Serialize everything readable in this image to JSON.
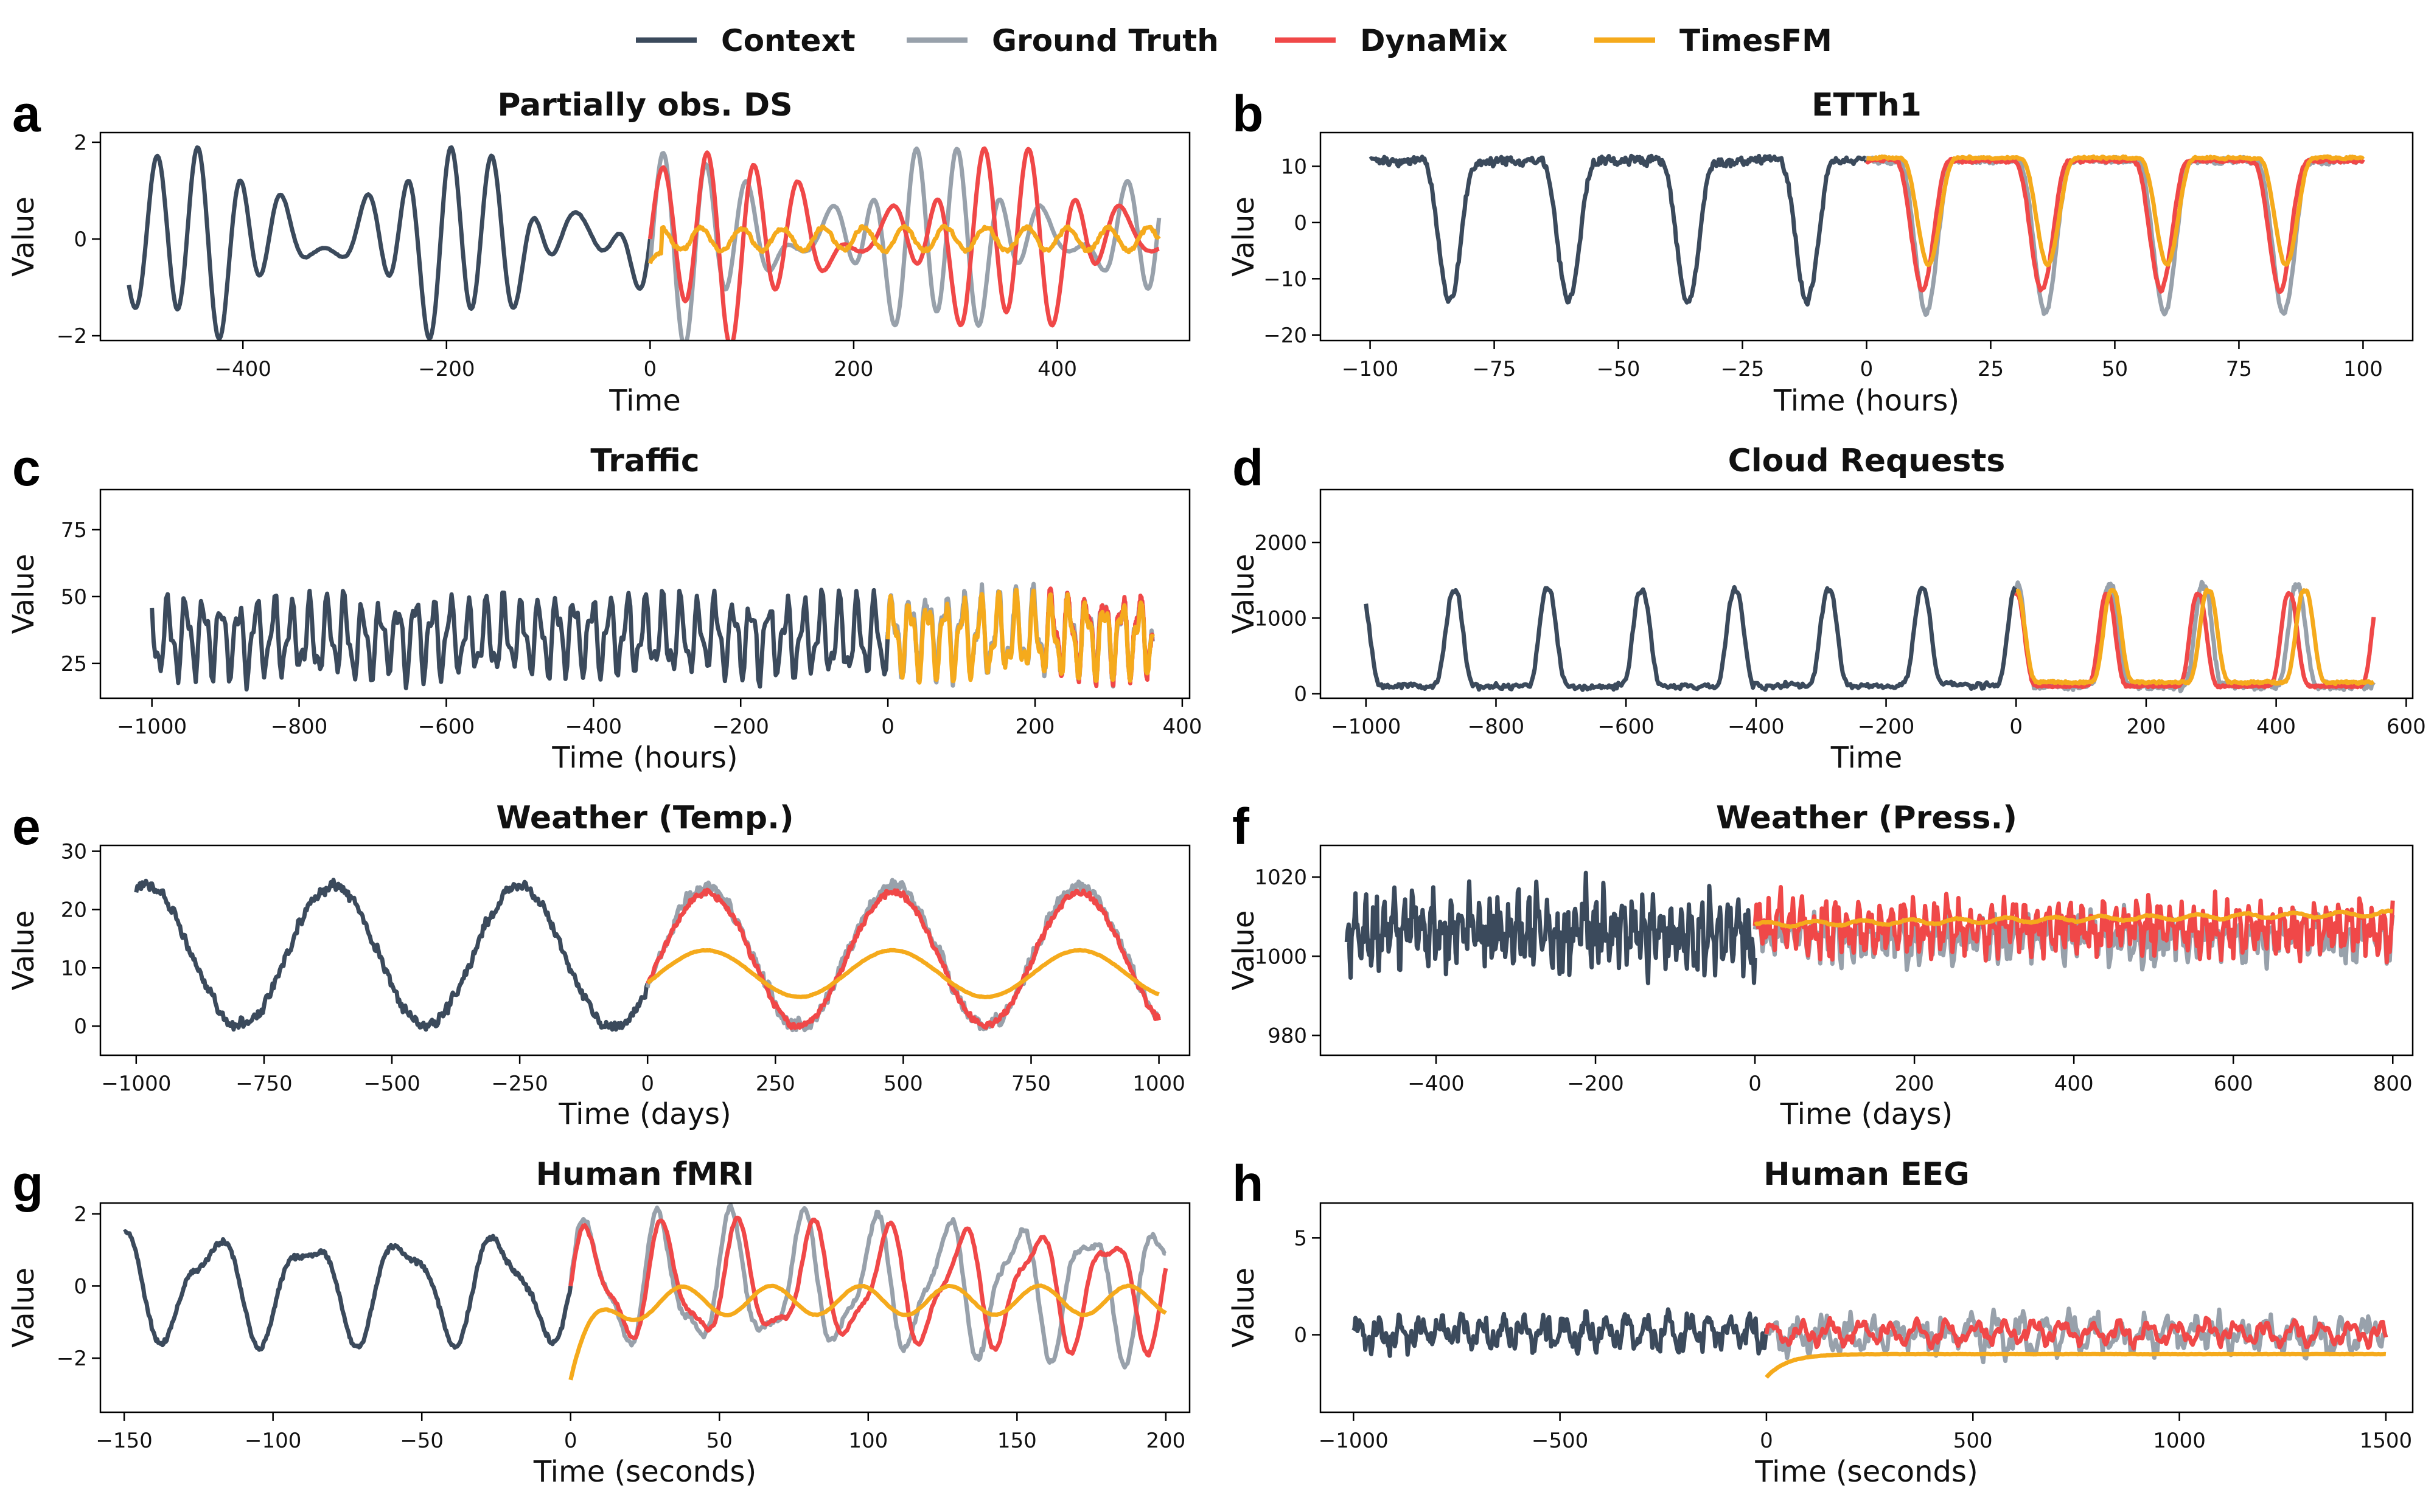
{
  "legend": [
    {
      "name": "Context",
      "color": "#3b4a5c"
    },
    {
      "name": "Ground Truth",
      "color": "#98a1ab"
    },
    {
      "name": "DynaMix",
      "color": "#f04848"
    },
    {
      "name": "TimesFM",
      "color": "#f5aa1c"
    }
  ],
  "chart_data": [
    {
      "letter": "a",
      "type": "line",
      "title": "Partially obs. DS",
      "xlabel": "Time",
      "ylabel": "Value",
      "xlim": [
        -540,
        530
      ],
      "ylim": [
        -2.1,
        2.2
      ],
      "xticks": [
        -400,
        -200,
        0,
        200,
        400
      ],
      "yticks": [
        -2,
        0,
        2
      ],
      "x_context": [
        -512,
        0
      ],
      "x_forecast": [
        0,
        500
      ],
      "series": [
        {
          "name": "Context",
          "style": "osc",
          "amp": 1.7,
          "base": 0.0,
          "period": 128,
          "extra": 1.2,
          "noise": 0.02
        },
        {
          "name": "Ground Truth",
          "style": "osc",
          "amp": 1.7,
          "base": 0.0,
          "period": 128,
          "extra": 1.2,
          "noise": 0.02,
          "phase": 0.3
        },
        {
          "name": "DynaMix",
          "style": "osc",
          "amp": 1.7,
          "base": 0.0,
          "period": 140,
          "extra": 1.2,
          "noise": 0.02,
          "phase": 0.0
        },
        {
          "name": "TimesFM",
          "style": "osc",
          "amp": 0.4,
          "base": 0.0,
          "period": 40,
          "extra": 0.3,
          "noise": 0.08,
          "decay": 1
        }
      ]
    },
    {
      "letter": "b",
      "type": "line",
      "title": "ETTh1",
      "xlabel": "Time (hours)",
      "ylabel": "Value",
      "xlim": [
        -110,
        110
      ],
      "ylim": [
        -21,
        16
      ],
      "xticks": [
        -100,
        -75,
        -50,
        -25,
        0,
        25,
        50,
        75,
        100
      ],
      "yticks": [
        -20,
        -10,
        0,
        10
      ],
      "x_context": [
        -100,
        0
      ],
      "x_forecast": [
        0,
        100
      ],
      "series": [
        {
          "name": "Context",
          "style": "dips",
          "amp": 25,
          "base": 11,
          "period": 24,
          "noise": 1.5
        },
        {
          "name": "Ground Truth",
          "style": "dips",
          "amp": 27,
          "base": 11,
          "period": 24,
          "noise": 1.0
        },
        {
          "name": "DynaMix",
          "style": "dips",
          "amp": 23,
          "base": 11,
          "period": 24,
          "noise": 0.6,
          "phase": 0.03
        },
        {
          "name": "TimesFM",
          "style": "dips",
          "amp": 19,
          "base": 11.5,
          "period": 24,
          "noise": 0.4,
          "phase": -0.02
        }
      ]
    },
    {
      "letter": "c",
      "type": "line",
      "title": "Traffic",
      "xlabel": "Time (hours)",
      "ylabel": "Value",
      "xlim": [
        -1070,
        410
      ],
      "ylim": [
        12,
        90
      ],
      "xticks": [
        -1000,
        -800,
        -600,
        -400,
        -200,
        0,
        200,
        400
      ],
      "yticks": [
        25,
        50,
        75
      ],
      "x_context": [
        -1000,
        0
      ],
      "x_forecast": [
        0,
        360
      ],
      "series": [
        {
          "name": "Context",
          "style": "spiky",
          "amp": 22,
          "base": 35,
          "period": 24,
          "noise": 5
        },
        {
          "name": "Ground Truth",
          "style": "spiky",
          "amp": 22,
          "base": 36,
          "period": 24,
          "noise": 5
        },
        {
          "name": "DynaMix",
          "style": "spiky",
          "amp": 22,
          "base": 36,
          "period": 24,
          "noise": 4,
          "start": 210
        },
        {
          "name": "TimesFM",
          "style": "spiky",
          "amp": 21,
          "base": 35,
          "period": 24,
          "noise": 3
        }
      ]
    },
    {
      "letter": "d",
      "type": "line",
      "title": "Cloud Requests",
      "xlabel": "Time",
      "ylabel": "Value",
      "xlim": [
        -1070,
        610
      ],
      "ylim": [
        -60,
        2700
      ],
      "xticks": [
        -1000,
        -800,
        -600,
        -400,
        -200,
        0,
        200,
        400,
        600
      ],
      "yticks": [
        0,
        1000,
        2000
      ],
      "x_context": [
        -1000,
        0
      ],
      "x_forecast": [
        0,
        550
      ],
      "series": [
        {
          "name": "Context",
          "style": "bumps",
          "amp": 2100,
          "base": 100,
          "period": 144,
          "noise": 80
        },
        {
          "name": "Ground Truth",
          "style": "bumps",
          "amp": 2200,
          "base": 100,
          "period": 144,
          "noise": 90
        },
        {
          "name": "DynaMix",
          "style": "bumps",
          "amp": 2000,
          "base": 100,
          "period": 140,
          "noise": 30
        },
        {
          "name": "TimesFM",
          "style": "bumps",
          "amp": 2000,
          "base": 150,
          "period": 148,
          "noise": 30
        }
      ]
    },
    {
      "letter": "e",
      "type": "line",
      "title": "Weather (Temp.)",
      "xlabel": "Time (days)",
      "ylabel": "Value",
      "xlim": [
        -1070,
        1060
      ],
      "ylim": [
        -5,
        31
      ],
      "xticks": [
        -1000,
        -750,
        -500,
        -250,
        0,
        250,
        500,
        750,
        1000
      ],
      "yticks": [
        0,
        10,
        20,
        30
      ],
      "x_context": [
        -1000,
        0
      ],
      "x_forecast": [
        0,
        1000
      ],
      "series": [
        {
          "name": "Context",
          "style": "seasonal",
          "amp": 12,
          "base": 12,
          "period": 365,
          "noise": 2.0
        },
        {
          "name": "Ground Truth",
          "style": "seasonal",
          "amp": 12,
          "base": 12,
          "period": 365,
          "noise": 2.2
        },
        {
          "name": "DynaMix",
          "style": "seasonal",
          "amp": 11.5,
          "base": 11.5,
          "period": 365,
          "noise": 1.2
        },
        {
          "name": "TimesFM",
          "style": "seasonal",
          "amp": 4,
          "base": 9,
          "period": 365,
          "noise": 0.1
        }
      ]
    },
    {
      "letter": "f",
      "type": "line",
      "title": "Weather (Press.)",
      "xlabel": "Time (days)",
      "ylabel": "Value",
      "xlim": [
        -545,
        825
      ],
      "ylim": [
        975,
        1028
      ],
      "xticks": [
        -400,
        -200,
        0,
        200,
        400,
        600,
        800
      ],
      "yticks": [
        980,
        1000,
        1020
      ],
      "x_context": [
        -512,
        0
      ],
      "x_forecast": [
        0,
        800
      ],
      "series": [
        {
          "name": "Context",
          "style": "noisy",
          "amp": 12,
          "base": 1006,
          "period": 12,
          "noise": 7
        },
        {
          "name": "Ground Truth",
          "style": "noisy",
          "amp": 9,
          "base": 1005,
          "period": 14,
          "noise": 5
        },
        {
          "name": "DynaMix",
          "style": "noisy",
          "amp": 10,
          "base": 1007,
          "period": 14,
          "noise": 4
        },
        {
          "name": "TimesFM",
          "style": "trend",
          "amp": 0.6,
          "base": 1008,
          "period": 60,
          "noise": 0.3,
          "slope": 0.0035
        }
      ]
    },
    {
      "letter": "g",
      "type": "line",
      "title": "Human fMRI",
      "xlabel": "Time (seconds)",
      "ylabel": "Value",
      "xlim": [
        -158,
        208
      ],
      "ylim": [
        -3.5,
        2.3
      ],
      "xticks": [
        -150,
        -100,
        -50,
        0,
        50,
        100,
        150,
        200
      ],
      "yticks": [
        -2,
        0,
        2
      ],
      "x_context": [
        -150,
        0
      ],
      "x_forecast": [
        0,
        200
      ],
      "series": [
        {
          "name": "Context",
          "style": "wave",
          "amp": 1.3,
          "base": 0.0,
          "period": 32,
          "noise": 0.15
        },
        {
          "name": "Ground Truth",
          "style": "wave",
          "amp": 1.6,
          "base": 0.0,
          "period": 24,
          "noise": 0.2
        },
        {
          "name": "DynaMix",
          "style": "wave",
          "amp": 1.4,
          "base": 0.0,
          "period": 25,
          "noise": 0.1
        },
        {
          "name": "TimesFM",
          "style": "damped",
          "amp": 0.4,
          "base": -0.4,
          "period": 30,
          "noise": 0.02
        }
      ]
    },
    {
      "letter": "h",
      "type": "line",
      "title": "Human EEG",
      "xlabel": "Time (seconds)",
      "ylabel": "Value",
      "xlim": [
        -1080,
        1565
      ],
      "ylim": [
        -4,
        6.8
      ],
      "xticks": [
        -1000,
        -500,
        0,
        500,
        1000,
        1500
      ],
      "yticks": [
        0,
        5
      ],
      "x_context": [
        -1000,
        0
      ],
      "x_forecast": [
        0,
        1500
      ],
      "series": [
        {
          "name": "Context",
          "style": "eeg",
          "amp": 0.6,
          "base": 0.1,
          "period": 50,
          "noise": 0.6
        },
        {
          "name": "Ground Truth",
          "style": "eeg",
          "amp": 0.6,
          "base": 0.0,
          "period": 60,
          "noise": 0.7
        },
        {
          "name": "DynaMix",
          "style": "eeg",
          "amp": 0.4,
          "base": 0.1,
          "period": 70,
          "noise": 0.3
        },
        {
          "name": "TimesFM",
          "style": "flat",
          "amp": 0.0,
          "base": -1.0,
          "period": 100,
          "noise": 0.02
        }
      ]
    }
  ]
}
